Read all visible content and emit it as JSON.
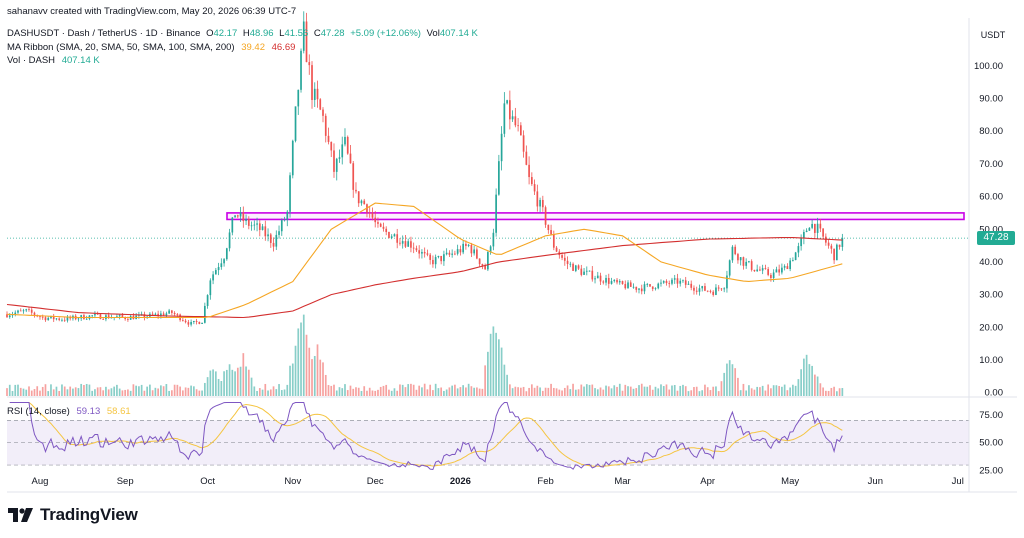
{
  "header": {
    "credit": "sahanavv created with TradingView.com, May 20, 2026 06:39 UTC-7",
    "symbol": "DASHUSDT · Dash / TetherUS · 1D · Binance",
    "o_label": "O",
    "o_value": "42.17",
    "h_label": "H",
    "h_value": "48.96",
    "l_label": "L",
    "l_value": "41.56",
    "c_label": "C",
    "c_value": "47.28",
    "change": "+5.09 (+12.06%)",
    "vol_label": "Vol",
    "vol_value": "407.14 K",
    "ma_label": "MA Ribbon (SMA, 20, SMA, 50, SMA, 100, SMA, 200)",
    "ma_val1": "39.42",
    "ma_val2": "46.69",
    "vol_series_label": "Vol · DASH",
    "vol_series_value": "407.14 K",
    "rsi_label": "RSI (14, close)",
    "rsi_val1": "59.13",
    "rsi_val2": "58.61"
  },
  "price_axis": {
    "unit": "USDT",
    "last_price_label": "47.28"
  },
  "brand": {
    "name": "TradingView"
  },
  "colors": {
    "up": "#26a69a",
    "down": "#ef5350",
    "ma50": "#f5a623",
    "ma200": "#d32f2f",
    "rsi": "#7e57c2",
    "rsi_ma": "#f5c542",
    "zone": "#c900e6",
    "last_price": "#22ab94"
  },
  "chart_data": [
    {
      "type": "candlestick",
      "title": "DASHUSDT · Dash / TetherUS · 1D · Binance",
      "ylabel": "USDT",
      "y_scale": "linear",
      "y_ticks": [
        0,
        10,
        20,
        30,
        40,
        50,
        60,
        70,
        80,
        90,
        100
      ],
      "ylim": [
        -1,
        114
      ],
      "x_tick_labels": [
        "Aug",
        "Sep",
        "Oct",
        "Nov",
        "Dec",
        "2026",
        "Feb",
        "Mar",
        "Apr",
        "May",
        "Jun",
        "Jul"
      ],
      "x_range": [
        "2025-07-20",
        "2026-07-04"
      ],
      "last_close": 47.28,
      "resistance_zone": [
        53,
        55
      ],
      "anchors": [
        [
          "2025-07-20",
          24
        ],
        [
          "2025-07-27",
          25
        ],
        [
          "2025-08-02",
          23
        ],
        [
          "2025-08-10",
          22.5
        ],
        [
          "2025-08-20",
          23.5
        ],
        [
          "2025-09-01",
          23
        ],
        [
          "2025-09-10",
          23.5
        ],
        [
          "2025-09-18",
          24.5
        ],
        [
          "2025-09-25",
          21
        ],
        [
          "2025-09-29",
          22
        ],
        [
          "2025-10-02",
          35
        ],
        [
          "2025-10-07",
          42
        ],
        [
          "2025-10-11",
          55
        ],
        [
          "2025-10-15",
          52
        ],
        [
          "2025-10-20",
          50
        ],
        [
          "2025-10-25",
          46
        ],
        [
          "2025-10-30",
          55
        ],
        [
          "2025-11-02",
          85
        ],
        [
          "2025-11-05",
          110
        ],
        [
          "2025-11-08",
          92
        ],
        [
          "2025-11-12",
          84
        ],
        [
          "2025-11-16",
          68
        ],
        [
          "2025-11-20",
          76
        ],
        [
          "2025-11-24",
          60
        ],
        [
          "2025-11-28",
          57
        ],
        [
          "2025-12-02",
          50
        ],
        [
          "2025-12-08",
          48
        ],
        [
          "2025-12-15",
          45
        ],
        [
          "2025-12-21",
          40
        ],
        [
          "2025-12-28",
          42
        ],
        [
          "2026-01-04",
          45
        ],
        [
          "2026-01-10",
          38
        ],
        [
          "2026-01-13",
          50
        ],
        [
          "2026-01-17",
          88
        ],
        [
          "2026-01-22",
          80
        ],
        [
          "2026-01-26",
          65
        ],
        [
          "2026-01-31",
          55
        ],
        [
          "2026-02-04",
          45
        ],
        [
          "2026-02-08",
          40
        ],
        [
          "2026-02-14",
          37
        ],
        [
          "2026-02-21",
          35
        ],
        [
          "2026-02-28",
          33
        ],
        [
          "2026-03-07",
          32
        ],
        [
          "2026-03-14",
          33
        ],
        [
          "2026-03-21",
          34
        ],
        [
          "2026-03-28",
          32
        ],
        [
          "2026-04-03",
          31
        ],
        [
          "2026-04-07",
          33
        ],
        [
          "2026-04-10",
          44
        ],
        [
          "2026-04-14",
          40
        ],
        [
          "2026-04-18",
          38
        ],
        [
          "2026-04-24",
          36
        ],
        [
          "2026-04-29",
          38
        ],
        [
          "2026-05-04",
          44
        ],
        [
          "2026-05-08",
          52
        ],
        [
          "2026-05-11",
          50
        ],
        [
          "2026-05-14",
          46
        ],
        [
          "2026-05-17",
          42
        ],
        [
          "2026-05-20",
          47.28
        ]
      ],
      "ma50": [
        [
          "2025-07-20",
          24
        ],
        [
          "2025-08-15",
          23
        ],
        [
          "2025-09-15",
          23
        ],
        [
          "2025-10-01",
          23
        ],
        [
          "2025-10-15",
          27
        ],
        [
          "2025-11-01",
          34
        ],
        [
          "2025-11-15",
          50
        ],
        [
          "2025-12-01",
          58
        ],
        [
          "2025-12-15",
          57
        ],
        [
          "2026-01-01",
          47
        ],
        [
          "2026-01-15",
          42
        ],
        [
          "2026-02-01",
          48
        ],
        [
          "2026-02-15",
          50
        ],
        [
          "2026-03-01",
          48
        ],
        [
          "2026-03-15",
          40
        ],
        [
          "2026-04-01",
          36
        ],
        [
          "2026-04-15",
          34
        ],
        [
          "2026-05-01",
          35
        ],
        [
          "2026-05-20",
          39.42
        ]
      ],
      "ma200": [
        [
          "2025-07-20",
          27
        ],
        [
          "2025-08-15",
          24.5
        ],
        [
          "2025-09-15",
          23.5
        ],
        [
          "2025-10-15",
          23
        ],
        [
          "2025-11-01",
          25
        ],
        [
          "2025-11-15",
          30
        ],
        [
          "2025-12-01",
          33
        ],
        [
          "2025-12-15",
          35
        ],
        [
          "2026-01-01",
          37
        ],
        [
          "2026-01-15",
          40
        ],
        [
          "2026-02-01",
          42
        ],
        [
          "2026-03-01",
          45
        ],
        [
          "2026-04-01",
          47
        ],
        [
          "2026-05-01",
          47.5
        ],
        [
          "2026-05-20",
          46.69
        ]
      ],
      "last_value_labels": [
        "39.42",
        "46.69"
      ]
    },
    {
      "type": "bar",
      "title": "Vol · DASH",
      "last_value": "407.14 K",
      "spikes": [
        [
          "2025-10-03",
          0.35
        ],
        [
          "2025-10-09",
          0.45
        ],
        [
          "2025-10-14",
          0.55
        ],
        [
          "2025-11-03",
          0.8
        ],
        [
          "2025-11-05",
          1.0
        ],
        [
          "2025-11-10",
          0.6
        ],
        [
          "2026-01-13",
          0.95
        ],
        [
          "2026-01-15",
          0.75
        ],
        [
          "2026-04-09",
          0.5
        ],
        [
          "2026-05-07",
          0.55
        ],
        [
          "2026-05-09",
          0.35
        ]
      ]
    },
    {
      "type": "line",
      "title": "RSI (14, close)",
      "y_ticks": [
        25,
        50,
        75
      ],
      "ylim": [
        22,
        90
      ],
      "overbought": 70,
      "oversold": 30,
      "series": [
        {
          "name": "RSI",
          "last_value": 59.13
        },
        {
          "name": "RSI-based MA",
          "last_value": 58.61
        }
      ]
    }
  ]
}
